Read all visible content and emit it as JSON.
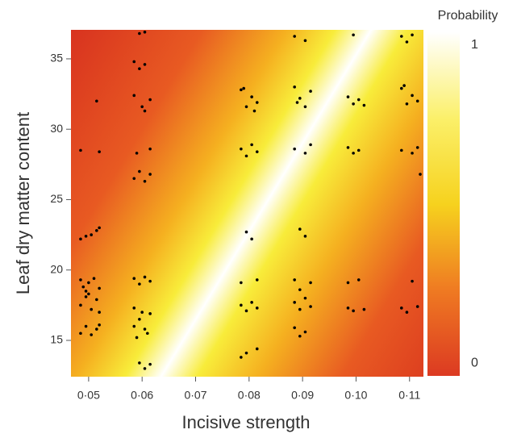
{
  "chart_data": {
    "type": "scatter",
    "x_label": "Incisive strength",
    "y_label": "Leaf dry matter content",
    "xlim": [
      0.0467,
      0.1126
    ],
    "ylim": [
      12.42,
      37.06
    ],
    "xticks": [
      {
        "value": 0.05,
        "label": "0·05"
      },
      {
        "value": 0.06,
        "label": "0·06"
      },
      {
        "value": 0.07,
        "label": "0·07"
      },
      {
        "value": 0.08,
        "label": "0·08"
      },
      {
        "value": 0.09,
        "label": "0·09"
      },
      {
        "value": 0.1,
        "label": "0·10"
      },
      {
        "value": 0.11,
        "label": "0·11"
      }
    ],
    "yticks": [
      15,
      20,
      25,
      30,
      35
    ],
    "color": "#000000",
    "colorbar": {
      "label": "Probability",
      "lim": [
        -0.04,
        1.04
      ],
      "ticks": [
        0,
        1
      ],
      "colors": [
        "#dc3a22",
        "#ef7a22",
        "#f6d21e",
        "#fbf06a",
        "#ffffff"
      ]
    },
    "x": [
      0.0485,
      0.0495,
      0.0505,
      0.0515,
      0.052,
      0.0485,
      0.049,
      0.05,
      0.051,
      0.052,
      0.0495,
      0.0485,
      0.0495,
      0.0505,
      0.0515,
      0.052,
      0.05,
      0.0485,
      0.0495,
      0.0505,
      0.0515,
      0.052,
      0.0515,
      0.0485,
      0.052,
      0.0595,
      0.0605,
      0.0585,
      0.0595,
      0.0605,
      0.0585,
      0.06,
      0.0615,
      0.0605,
      0.059,
      0.0615,
      0.0585,
      0.0595,
      0.0605,
      0.0615,
      0.0585,
      0.0595,
      0.0605,
      0.0615,
      0.0585,
      0.0595,
      0.0605,
      0.0615,
      0.059,
      0.06,
      0.061,
      0.0585,
      0.0595,
      0.0605,
      0.0615,
      0.0785,
      0.0795,
      0.0805,
      0.0815,
      0.079,
      0.081,
      0.0785,
      0.0795,
      0.0805,
      0.0815,
      0.0795,
      0.0805,
      0.0785,
      0.0815,
      0.0785,
      0.0795,
      0.0805,
      0.0815,
      0.0785,
      0.0795,
      0.0815,
      0.0885,
      0.0905,
      0.0885,
      0.0895,
      0.0905,
      0.0915,
      0.089,
      0.0885,
      0.0905,
      0.0915,
      0.0895,
      0.0905,
      0.0885,
      0.0895,
      0.0915,
      0.0885,
      0.0895,
      0.0905,
      0.0915,
      0.0885,
      0.0895,
      0.0905,
      0.0995,
      0.0985,
      0.0995,
      0.1005,
      0.1015,
      0.0985,
      0.0995,
      0.1005,
      0.0985,
      0.1005,
      0.0985,
      0.0995,
      0.1015,
      0.1085,
      0.1095,
      0.1105,
      0.1085,
      0.1095,
      0.1105,
      0.1115,
      0.109,
      0.1085,
      0.1105,
      0.1115,
      0.112,
      0.1105,
      0.1085,
      0.1095,
      0.1115
    ],
    "values": [
      22.2,
      22.4,
      22.5,
      22.8,
      23.0,
      19.3,
      18.8,
      19.1,
      19.4,
      18.7,
      18.5,
      17.5,
      18.1,
      17.2,
      17.9,
      17.0,
      18.3,
      15.5,
      16.0,
      15.4,
      15.8,
      16.1,
      32.0,
      28.5,
      28.4,
      36.8,
      36.9,
      34.8,
      34.3,
      34.6,
      32.4,
      31.6,
      32.1,
      31.3,
      28.3,
      28.6,
      26.5,
      27.0,
      26.3,
      26.8,
      19.4,
      19.0,
      19.5,
      19.2,
      17.3,
      16.5,
      15.8,
      16.9,
      15.2,
      17.0,
      15.5,
      16.0,
      13.4,
      13.0,
      13.3,
      32.8,
      31.6,
      32.3,
      31.9,
      32.9,
      31.3,
      28.6,
      28.1,
      28.9,
      28.4,
      22.7,
      22.2,
      19.1,
      19.3,
      17.5,
      17.1,
      17.7,
      17.3,
      13.8,
      14.1,
      14.4,
      36.6,
      36.3,
      33.0,
      32.2,
      31.6,
      32.7,
      31.9,
      28.6,
      28.3,
      28.9,
      22.9,
      22.4,
      19.3,
      18.6,
      19.1,
      17.7,
      17.2,
      18.0,
      17.4,
      15.9,
      15.3,
      15.6,
      36.7,
      32.3,
      31.8,
      32.1,
      31.7,
      28.7,
      28.3,
      28.5,
      19.1,
      19.3,
      17.3,
      17.1,
      17.2,
      36.6,
      36.2,
      36.7,
      32.9,
      31.8,
      32.4,
      32.0,
      33.1,
      28.5,
      28.3,
      28.7,
      26.8,
      19.2,
      17.3,
      17.0,
      17.4
    ]
  }
}
